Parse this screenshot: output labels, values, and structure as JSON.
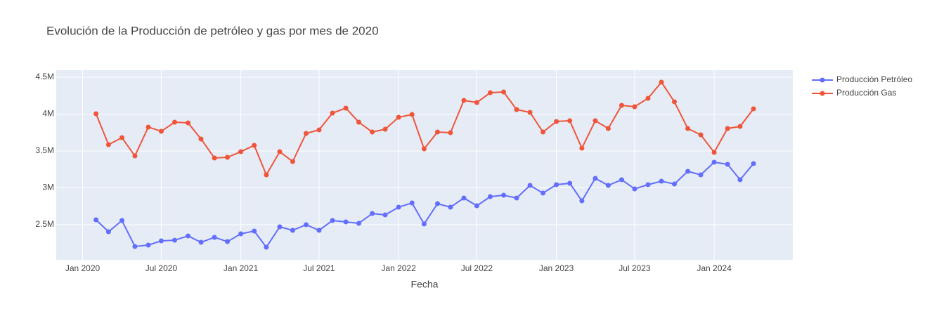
{
  "chart_data": {
    "type": "line",
    "title": "Evolución de la Producción de petróleo y gas por mes de 2020",
    "x_label": "Fecha",
    "x": [
      "2020-02",
      "2020-03",
      "2020-04",
      "2020-05",
      "2020-06",
      "2020-07",
      "2020-08",
      "2020-09",
      "2020-10",
      "2020-11",
      "2020-12",
      "2021-01",
      "2021-02",
      "2021-03",
      "2021-04",
      "2021-05",
      "2021-06",
      "2021-07",
      "2021-08",
      "2021-09",
      "2021-10",
      "2021-11",
      "2021-12",
      "2022-01",
      "2022-02",
      "2022-03",
      "2022-04",
      "2022-05",
      "2022-06",
      "2022-07",
      "2022-08",
      "2022-09",
      "2022-10",
      "2022-11",
      "2022-12",
      "2023-01",
      "2023-02",
      "2023-03",
      "2023-04",
      "2023-05",
      "2023-06",
      "2023-07",
      "2023-08",
      "2023-09",
      "2023-10",
      "2023-11",
      "2023-12",
      "2024-01",
      "2024-02",
      "2024-03",
      "2024-04"
    ],
    "series": [
      {
        "name": "Producción Petróleo",
        "color": "#636efa",
        "values": [
          2567000,
          2405000,
          2557000,
          2205000,
          2224000,
          2281000,
          2290000,
          2348000,
          2262000,
          2329000,
          2271000,
          2376000,
          2414000,
          2195000,
          2471000,
          2424000,
          2500000,
          2424000,
          2557000,
          2538000,
          2519000,
          2652000,
          2633000,
          2738000,
          2795000,
          2510000,
          2786000,
          2738000,
          2862000,
          2757000,
          2881000,
          2900000,
          2862000,
          3033000,
          2929000,
          3043000,
          3062000,
          2824000,
          3129000,
          3033000,
          3110000,
          2986000,
          3043000,
          3090000,
          3052000,
          3224000,
          3176000,
          3348000,
          3319000,
          3110000,
          3329000
        ]
      },
      {
        "name": "Producción Gas",
        "color": "#ef553b",
        "values": [
          4005000,
          3586000,
          3681000,
          3433000,
          3824000,
          3767000,
          3890000,
          3881000,
          3662000,
          3405000,
          3414000,
          3490000,
          3576000,
          3176000,
          3490000,
          3357000,
          3738000,
          3786000,
          4014000,
          4081000,
          3890000,
          3757000,
          3795000,
          3957000,
          3995000,
          3529000,
          3757000,
          3748000,
          4186000,
          4157000,
          4290000,
          4300000,
          4062000,
          4024000,
          3757000,
          3900000,
          3910000,
          3538000,
          3910000,
          3805000,
          4119000,
          4100000,
          4214000,
          4433000,
          4167000,
          3805000,
          3719000,
          3481000,
          3805000,
          3833000,
          4071000
        ]
      }
    ],
    "xlim": [
      "2019-11",
      "2024-07"
    ],
    "xticks": [
      {
        "value": "2020-01",
        "label": "Jan 2020"
      },
      {
        "value": "2020-07",
        "label": "Jul 2020"
      },
      {
        "value": "2021-01",
        "label": "Jan 2021"
      },
      {
        "value": "2021-07",
        "label": "Jul 2021"
      },
      {
        "value": "2022-01",
        "label": "Jan 2022"
      },
      {
        "value": "2022-07",
        "label": "Jul 2022"
      },
      {
        "value": "2023-01",
        "label": "Jan 2023"
      },
      {
        "value": "2023-07",
        "label": "Jul 2023"
      },
      {
        "value": "2024-01",
        "label": "Jan 2024"
      }
    ],
    "ylim": [
      2024000,
      4595000
    ],
    "yticks": [
      {
        "value": 2500000,
        "label": "2.5M"
      },
      {
        "value": 3000000,
        "label": "3M"
      },
      {
        "value": 3500000,
        "label": "3.5M"
      },
      {
        "value": 4000000,
        "label": "4M"
      },
      {
        "value": 4500000,
        "label": "4.5M"
      }
    ],
    "grid": true,
    "legend": "right",
    "background": "#e5ecf6"
  }
}
